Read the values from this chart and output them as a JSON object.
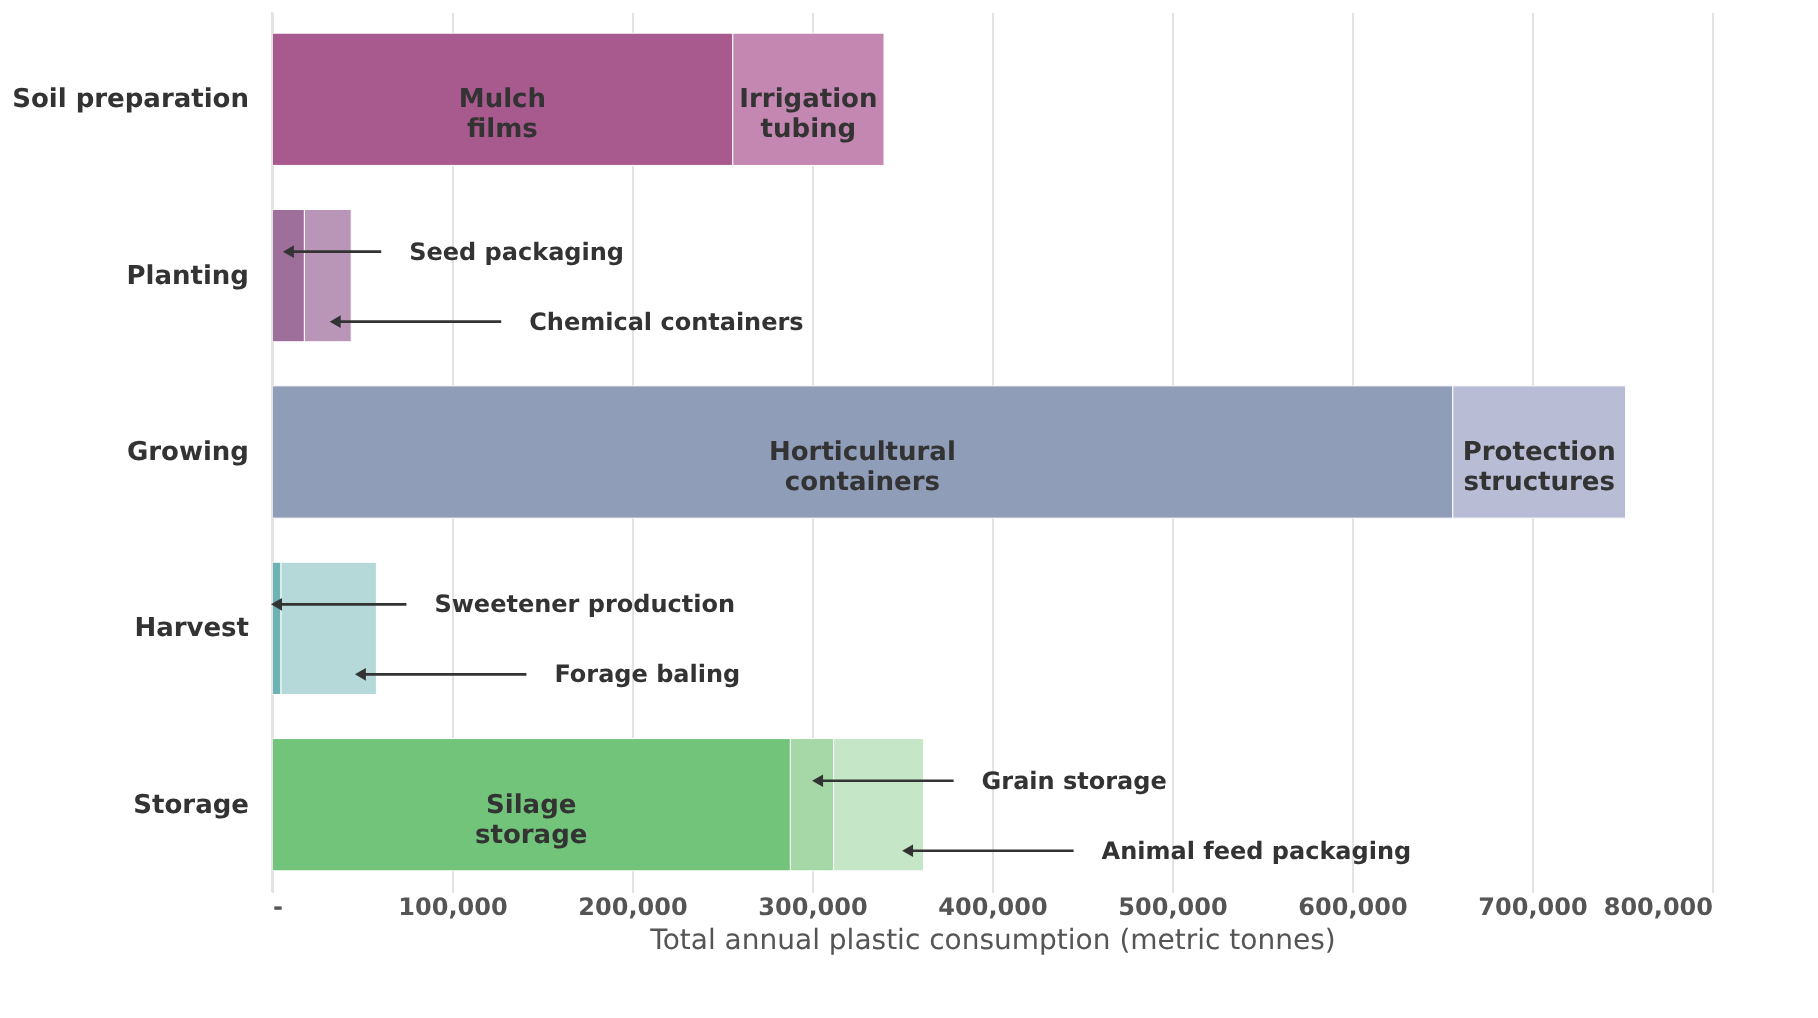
{
  "chart_data": {
    "type": "bar",
    "orientation": "horizontal",
    "stacked": true,
    "categories": [
      "Soil preparation",
      "Planting",
      "Growing",
      "Harvest",
      "Storage"
    ],
    "series": [
      {
        "name": "Mulch films",
        "color": "#a85a8e",
        "values": [
          256000,
          null,
          null,
          null,
          null
        ]
      },
      {
        "name": "Irrigation tubing",
        "color": "#c387b2",
        "values": [
          84000,
          null,
          null,
          null,
          null
        ]
      },
      {
        "name": "Seed packaging",
        "color": "#9e6f9b",
        "values": [
          null,
          18000,
          null,
          null,
          null
        ]
      },
      {
        "name": "Chemical containers",
        "color": "#b995b7",
        "values": [
          null,
          26000,
          null,
          null,
          null
        ]
      },
      {
        "name": "Horticultural containers",
        "color": "#8f9db8",
        "values": [
          null,
          null,
          656000,
          null,
          null
        ]
      },
      {
        "name": "Protection structures",
        "color": "#b8bcd4",
        "values": [
          null,
          null,
          96000,
          null,
          null
        ]
      },
      {
        "name": "Sweetener production",
        "color": "#6cb3b5",
        "values": [
          null,
          null,
          null,
          5000,
          null
        ]
      },
      {
        "name": "Forage baling",
        "color": "#b5d9d8",
        "values": [
          null,
          null,
          null,
          53000,
          null
        ]
      },
      {
        "name": "Silage storage",
        "color": "#72c47b",
        "values": [
          null,
          null,
          null,
          null,
          288000
        ]
      },
      {
        "name": "Grain storage",
        "color": "#a5d8a6",
        "values": [
          null,
          null,
          null,
          null,
          24000
        ]
      },
      {
        "name": "Animal feed packaging",
        "color": "#c6e6c8",
        "values": [
          null,
          null,
          null,
          null,
          50000
        ]
      }
    ],
    "xlim": [
      0,
      800000
    ],
    "xticks": [
      {
        "value": 0,
        "label": "-"
      },
      {
        "value": 100000,
        "label": "100,000"
      },
      {
        "value": 200000,
        "label": "200,000"
      },
      {
        "value": 300000,
        "label": "300,000"
      },
      {
        "value": 400000,
        "label": "400,000"
      },
      {
        "value": 500000,
        "label": "500,000"
      },
      {
        "value": 600000,
        "label": "600,000"
      },
      {
        "value": 700000,
        "label": "700,000"
      },
      {
        "value": 800000,
        "label": "800,000"
      }
    ],
    "xlabel": "Total annual plastic consumption (metric tonnes)",
    "grid": "x",
    "legend": false
  }
}
